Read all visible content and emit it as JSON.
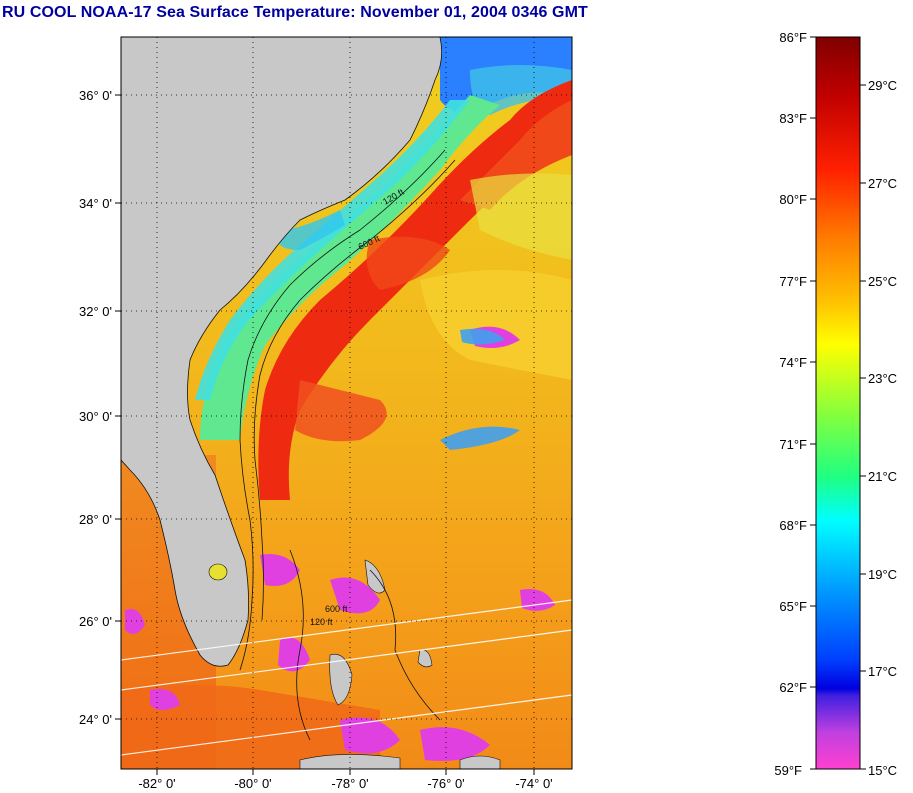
{
  "title": "RU COOL  NOAA-17  Sea Surface Temperature:  November 01, 2004 0346 GMT",
  "map": {
    "lat_labels": [
      "36° 0'",
      "34° 0'",
      "32° 0'",
      "30° 0'",
      "28° 0'",
      "26° 0'",
      "24° 0'"
    ],
    "lon_labels": [
      "-82° 0'",
      "-80° 0'",
      "-78° 0'",
      "-76° 0'",
      "-74° 0'"
    ],
    "contour_labels": [
      "120 ft",
      "600 ft"
    ],
    "colors": {
      "land": "#c8c8c8",
      "gulf_stream": "#ee2a10",
      "shelf": "#38e8e8",
      "open_ocean": "#f5b01c",
      "cloud_flag": "#e040e0"
    }
  },
  "colorbar": {
    "fahrenheit_labels": [
      "86°F",
      "83°F",
      "80°F",
      "77°F",
      "74°F",
      "71°F",
      "68°F",
      "65°F",
      "62°F",
      "59°F"
    ],
    "celsius_labels": [
      "29°C",
      "27°C",
      "25°C",
      "23°C",
      "21°C",
      "19°C",
      "17°C",
      "15°C"
    ],
    "range_f": [
      59,
      86
    ],
    "range_c": [
      15,
      30
    ]
  }
}
